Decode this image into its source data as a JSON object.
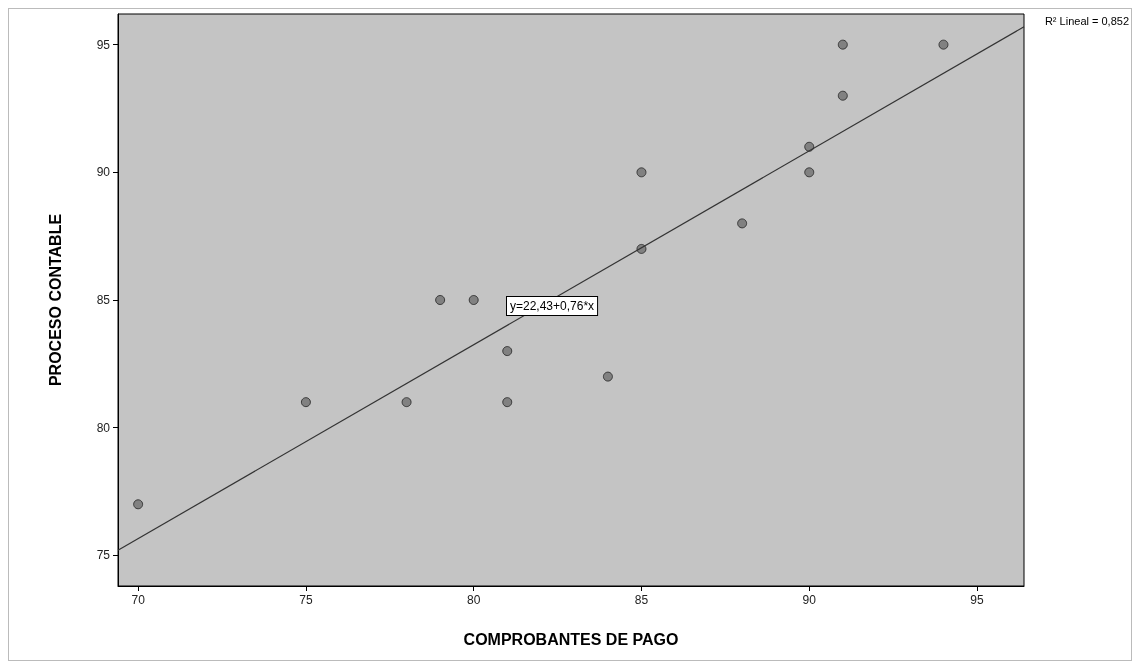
{
  "chart_data": {
    "type": "scatter",
    "xlabel": "COMPROBANTES DE PAGO",
    "ylabel": "PROCESO CONTABLE",
    "xlim": [
      69.4,
      96.4
    ],
    "xticks": [
      70,
      75,
      80,
      85,
      90,
      95
    ],
    "ylim": [
      73.8,
      96.2
    ],
    "yticks": [
      75,
      80,
      85,
      90,
      95
    ],
    "grid": false,
    "series": [
      {
        "marker": "circle",
        "color": "#707070",
        "x": [
          70,
          75,
          78,
          79,
          80,
          81,
          81,
          84,
          85,
          85,
          88,
          90,
          90,
          91,
          91,
          94
        ],
        "values": [
          77,
          81,
          81,
          85,
          85,
          83,
          81,
          82,
          90,
          87,
          88,
          91,
          90,
          95,
          93,
          95
        ]
      },
      {
        "type": "line",
        "color": "#333333",
        "x": [
          69.4,
          96.4
        ],
        "values": [
          75.2,
          95.7
        ]
      }
    ],
    "annotations": [
      "R² Lineal = 0,852",
      "y=22,43+0,76*x"
    ]
  }
}
